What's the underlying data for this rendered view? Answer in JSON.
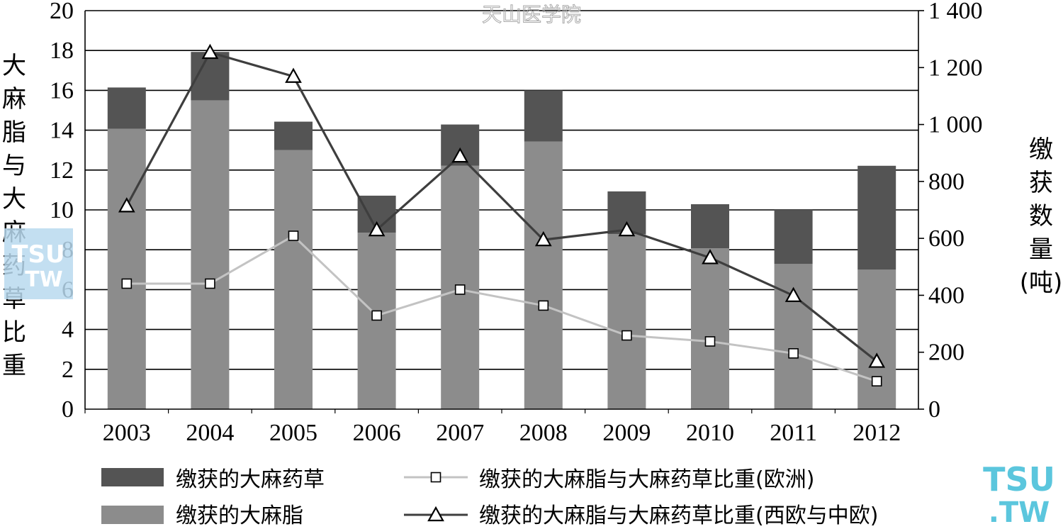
{
  "watermark": {
    "top": "天山医学院",
    "badge_line1": "TSU",
    "badge_line2": "TW",
    "corner_line1": "TSU",
    "corner_line2": ".TW"
  },
  "chart_data": {
    "type": "bar",
    "categories": [
      "2003",
      "2004",
      "2005",
      "2006",
      "2007",
      "2008",
      "2009",
      "2010",
      "2011",
      "2012"
    ],
    "series": [
      {
        "name": "缴获的大麻脂",
        "kind": "bar",
        "axis": "right",
        "stack": "total",
        "color": "#8c8c8c",
        "values": [
          985,
          1085,
          910,
          620,
          855,
          940,
          615,
          565,
          510,
          490
        ]
      },
      {
        "name": "缴获的大麻药草",
        "kind": "bar",
        "axis": "right",
        "stack": "total",
        "color": "#545454",
        "values": [
          145,
          170,
          100,
          130,
          145,
          180,
          150,
          155,
          190,
          365
        ]
      },
      {
        "name": "缴获的大麻脂与大麻药草比重(欧洲)",
        "kind": "line",
        "axis": "left",
        "color": "#c3c3c3",
        "marker": "square",
        "values": [
          6.3,
          6.3,
          8.7,
          4.7,
          6.0,
          5.2,
          3.7,
          3.4,
          2.8,
          1.4
        ]
      },
      {
        "name": "缴获的大麻脂与大麻药草比重(西欧与中欧)",
        "kind": "line",
        "axis": "left",
        "color": "#3e3e3e",
        "marker": "triangle",
        "values": [
          10.2,
          17.9,
          16.7,
          9.0,
          12.7,
          8.5,
          9.0,
          7.6,
          5.7,
          2.4
        ]
      }
    ],
    "ylabel": "大麻脂与大麻药草比重",
    "y2label_chars": [
      "缴",
      "获",
      "数",
      "量",
      "(吨)"
    ],
    "ylabel_chars": [
      "大",
      "麻",
      "脂",
      "与",
      "大",
      "麻",
      "药",
      "草",
      "比",
      "重"
    ],
    "ylim": [
      0,
      20
    ],
    "y2lim": [
      0,
      1400
    ],
    "yticks": [
      "0",
      "2",
      "4",
      "6",
      "8",
      "10",
      "12",
      "14",
      "16",
      "18",
      "20"
    ],
    "y2ticks": [
      "0",
      "200",
      "400",
      "600",
      "800",
      "1 000",
      "1 200",
      "1 400"
    ],
    "grid": true,
    "legend_position": "bottom"
  }
}
